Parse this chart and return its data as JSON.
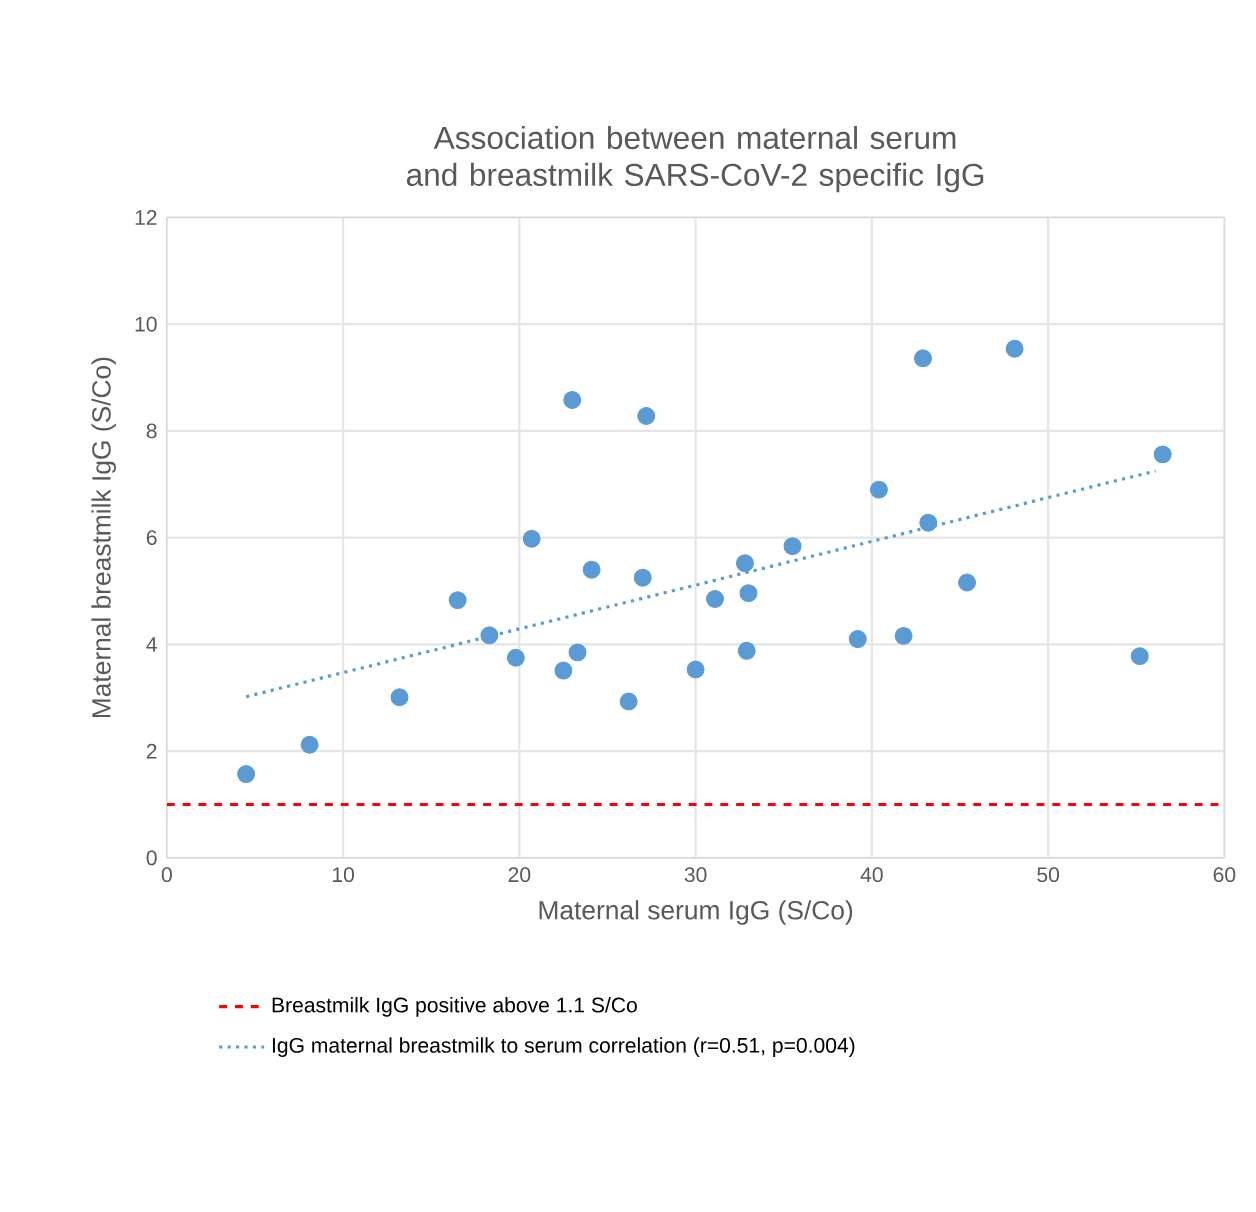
{
  "chart_data": {
    "type": "scatter",
    "title": "Association between maternal serum and breastmilk SARS-CoV-2 specific IgG",
    "xlabel": "Maternal serum IgG (S/Co)",
    "ylabel": "Maternal breastmilk IgG (S/Co)",
    "xlim": [
      0,
      60
    ],
    "ylim": [
      0,
      12
    ],
    "xticks": [
      0,
      10,
      20,
      30,
      40,
      50,
      60
    ],
    "yticks": [
      0,
      2,
      4,
      6,
      8,
      10,
      12
    ],
    "grid": true,
    "legend": "bottom",
    "marker": "circle",
    "series": [
      {
        "color": "#5b9bd5",
        "x": [
          4.5,
          8.1,
          13.2,
          16.5,
          18.3,
          19.8,
          20.7,
          22.5,
          23.0,
          23.3,
          24.1,
          26.2,
          27.0,
          27.2,
          30.0,
          31.1,
          32.8,
          33.0,
          32.9,
          35.5,
          39.2,
          40.4,
          41.8,
          42.9,
          43.2,
          45.4,
          48.1,
          55.2,
          56.5
        ],
        "values": [
          1.57,
          2.12,
          3.01,
          4.83,
          4.17,
          3.75,
          5.98,
          3.51,
          8.58,
          3.85,
          5.4,
          2.93,
          5.25,
          8.28,
          3.53,
          4.85,
          5.52,
          4.96,
          3.88,
          5.84,
          4.1,
          6.9,
          4.16,
          9.36,
          6.28,
          5.16,
          9.54,
          3.78,
          7.56
        ]
      },
      {
        "type": "line",
        "name": "IgG maternal breastmilk to serum correlation (r=0.51, p=0.004)",
        "color": "#5b9bd5",
        "line_style": "dotted",
        "marker": "none",
        "x": [
          4.5,
          56.1
        ],
        "values": [
          3.02,
          7.25
        ]
      }
    ],
    "ref_lines": [
      {
        "axis": "y",
        "value": 1.0,
        "label": "Breastmilk IgG positive above 1.1 S/Co",
        "color": "#ff0000",
        "line_style": "dashed"
      }
    ]
  }
}
